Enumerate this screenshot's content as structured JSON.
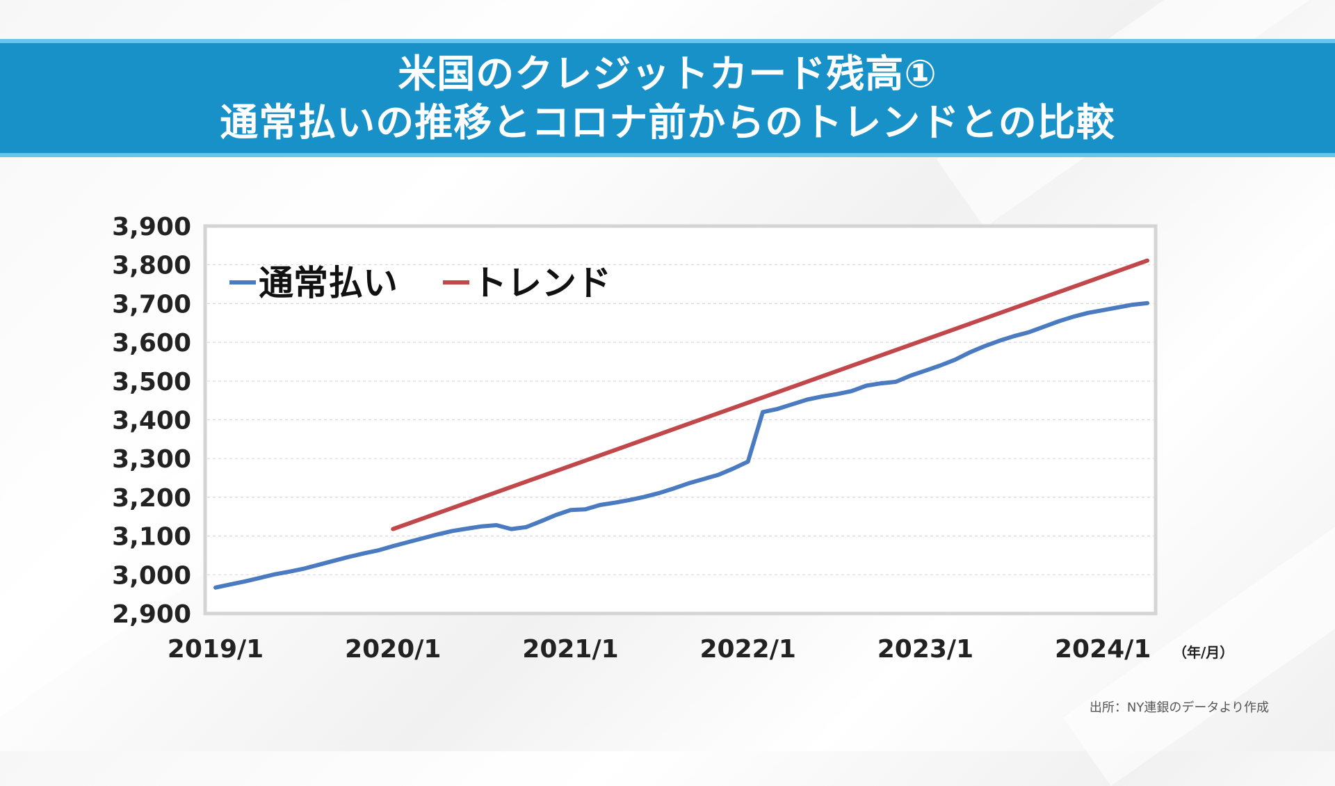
{
  "header": {
    "title_line1": "米国のクレジットカード残高①",
    "title_line2": "通常払いの推移とコロナ前からのトレンドとの比較"
  },
  "source_note": "出所：NY連銀のデータより作成",
  "colors": {
    "banner": "#1891c9",
    "banner_border": "#67c4ea",
    "series_regular": "#4a7abf",
    "series_trend": "#c0474a"
  },
  "chart_data": {
    "type": "line",
    "title": "",
    "xlabel": "",
    "ylabel": "",
    "x_unit_label": "（年/月）",
    "ylim": [
      2900,
      3900
    ],
    "xlim": [
      "2019/1",
      "2024/4"
    ],
    "y_ticks": [
      "3,900",
      "3,800",
      "3,700",
      "3,600",
      "3,500",
      "3,400",
      "3,300",
      "3,200",
      "3,100",
      "3,000",
      "2,900"
    ],
    "x_ticks": [
      "2019/1",
      "2020/1",
      "2021/1",
      "2022/1",
      "2023/1",
      "2024/1"
    ],
    "grid": "horizontal-dashed",
    "legend_placement": "top-left",
    "series": [
      {
        "name": "通常払い",
        "color": "#4a7abf",
        "points": [
          [
            "2019/1",
            2967
          ],
          [
            "2019/2",
            2975
          ],
          [
            "2019/3",
            2983
          ],
          [
            "2019/4",
            2992
          ],
          [
            "2019/5",
            3001
          ],
          [
            "2019/6",
            3008
          ],
          [
            "2019/7",
            3016
          ],
          [
            "2019/8",
            3026
          ],
          [
            "2019/9",
            3036
          ],
          [
            "2019/10",
            3046
          ],
          [
            "2019/11",
            3055
          ],
          [
            "2019/12",
            3063
          ],
          [
            "2020/1",
            3074
          ],
          [
            "2020/2",
            3084
          ],
          [
            "2020/3",
            3094
          ],
          [
            "2020/4",
            3104
          ],
          [
            "2020/5",
            3113
          ],
          [
            "2020/6",
            3119
          ],
          [
            "2020/7",
            3125
          ],
          [
            "2020/8",
            3128
          ],
          [
            "2020/9",
            3118
          ],
          [
            "2020/10",
            3123
          ],
          [
            "2020/11",
            3138
          ],
          [
            "2020/12",
            3154
          ],
          [
            "2021/1",
            3167
          ],
          [
            "2021/2",
            3169
          ],
          [
            "2021/3",
            3180
          ],
          [
            "2021/4",
            3186
          ],
          [
            "2021/5",
            3193
          ],
          [
            "2021/6",
            3201
          ],
          [
            "2021/7",
            3211
          ],
          [
            "2021/8",
            3223
          ],
          [
            "2021/9",
            3236
          ],
          [
            "2021/10",
            3247
          ],
          [
            "2021/11",
            3258
          ],
          [
            "2021/12",
            3274
          ],
          [
            "2022/1",
            3292
          ],
          [
            "2022/2",
            3420
          ],
          [
            "2022/3",
            3428
          ],
          [
            "2022/4",
            3440
          ],
          [
            "2022/5",
            3452
          ],
          [
            "2022/6",
            3460
          ],
          [
            "2022/7",
            3466
          ],
          [
            "2022/8",
            3474
          ],
          [
            "2022/9",
            3488
          ],
          [
            "2022/10",
            3494
          ],
          [
            "2022/11",
            3498
          ],
          [
            "2022/12",
            3514
          ],
          [
            "2023/1",
            3527
          ],
          [
            "2023/2",
            3540
          ],
          [
            "2023/3",
            3555
          ],
          [
            "2023/4",
            3574
          ],
          [
            "2023/5",
            3590
          ],
          [
            "2023/6",
            3604
          ],
          [
            "2023/7",
            3616
          ],
          [
            "2023/8",
            3626
          ],
          [
            "2023/9",
            3640
          ],
          [
            "2023/10",
            3654
          ],
          [
            "2023/11",
            3666
          ],
          [
            "2023/12",
            3676
          ],
          [
            "2024/1",
            3683
          ],
          [
            "2024/2",
            3690
          ],
          [
            "2024/3",
            3697
          ],
          [
            "2024/4",
            3701
          ]
        ]
      },
      {
        "name": "トレンド",
        "color": "#c0474a",
        "points": [
          [
            "2020/1",
            3118
          ],
          [
            "2024/4",
            3811
          ]
        ]
      }
    ]
  }
}
